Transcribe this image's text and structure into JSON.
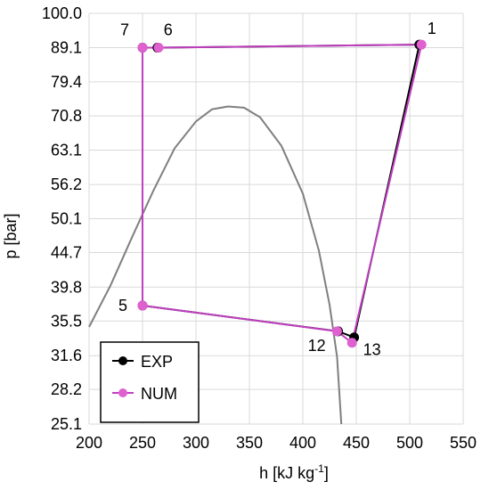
{
  "chart_data": {
    "type": "line",
    "xlabel": "h [kJ kg",
    "xlabel_sup": "-1",
    "xlabel_suffix": "]",
    "ylabel": "p [bar]",
    "xlim": [
      200,
      550
    ],
    "x_ticks": [
      200,
      250,
      300,
      350,
      400,
      450,
      500,
      550
    ],
    "y_ticks": [
      "25.1",
      "28.2",
      "31.6",
      "35.5",
      "39.8",
      "44.7",
      "50.1",
      "56.2",
      "63.1",
      "70.8",
      "79.4",
      "89.1",
      "100.0"
    ],
    "y_scale": "log",
    "grid": true,
    "legend_position": "bottom-left",
    "series": [
      {
        "name": "EXP",
        "color": "#000000",
        "marker_color": "#000000",
        "points": [
          {
            "x": 509,
            "y": 90.0
          },
          {
            "x": 448,
            "y": 33.6
          },
          {
            "x": 433,
            "y": 34.3
          },
          {
            "x": 250,
            "y": 37.4
          },
          {
            "x": 250,
            "y": 89.1
          },
          {
            "x": 264,
            "y": 89.1
          },
          {
            "x": 509,
            "y": 90.0
          }
        ],
        "dashed_segment": [
          3,
          4
        ]
      },
      {
        "name": "NUM",
        "color": "#c040c0",
        "marker_color": "#e060d0",
        "points": [
          {
            "x": 511,
            "y": 90.0
          },
          {
            "x": 446,
            "y": 33.0
          },
          {
            "x": 432,
            "y": 34.3
          },
          {
            "x": 250,
            "y": 37.4
          },
          {
            "x": 250,
            "y": 89.1
          },
          {
            "x": 265,
            "y": 89.1
          },
          {
            "x": 511,
            "y": 90.0
          }
        ]
      }
    ],
    "saturation_dome": {
      "color": "#7f7f7f",
      "points": [
        {
          "x": 200,
          "y": 34.8
        },
        {
          "x": 220,
          "y": 40.0
        },
        {
          "x": 240,
          "y": 47.0
        },
        {
          "x": 260,
          "y": 55.0
        },
        {
          "x": 280,
          "y": 63.5
        },
        {
          "x": 300,
          "y": 69.5
        },
        {
          "x": 315,
          "y": 72.4
        },
        {
          "x": 330,
          "y": 73.1
        },
        {
          "x": 345,
          "y": 72.8
        },
        {
          "x": 360,
          "y": 70.5
        },
        {
          "x": 380,
          "y": 64.0
        },
        {
          "x": 400,
          "y": 54.5
        },
        {
          "x": 415,
          "y": 45.0
        },
        {
          "x": 425,
          "y": 37.5
        },
        {
          "x": 432,
          "y": 31.5
        },
        {
          "x": 436,
          "y": 25.1
        }
      ]
    },
    "point_labels": [
      {
        "text": "1",
        "x": 509,
        "y": 90.0
      },
      {
        "text": "7",
        "x": 250,
        "y": 89.1
      },
      {
        "text": "6",
        "x": 264,
        "y": 89.1
      },
      {
        "text": "5",
        "x": 250,
        "y": 37.4
      },
      {
        "text": "12",
        "x": 433,
        "y": 34.3
      },
      {
        "text": "13",
        "x": 448,
        "y": 33.6
      }
    ]
  }
}
